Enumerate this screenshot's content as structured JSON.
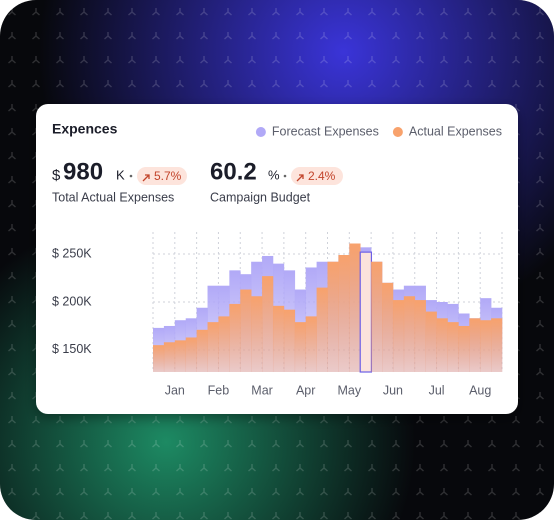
{
  "card": {
    "title": "Expences",
    "stats": [
      {
        "prefix": "$",
        "value": "980",
        "unit": "K",
        "change": "5.7%",
        "label": "Total Actual Expenses"
      },
      {
        "value": "60.2",
        "unit": "%",
        "change": "2.4%",
        "label": "Campaign Budget"
      }
    ]
  },
  "chart_data": {
    "type": "bar",
    "categories": [
      "Jan",
      null,
      null,
      null,
      "Feb",
      null,
      null,
      null,
      "Mar",
      null,
      null,
      null,
      "Apr",
      null,
      null,
      null,
      "May",
      null,
      null,
      null,
      "Jun",
      null,
      null,
      null,
      "Jul",
      null,
      null,
      null,
      "Aug",
      null,
      null,
      null
    ],
    "series": [
      {
        "name": "Forecast Expenses",
        "color": "#b1a9f7",
        "values": [
          173000,
          175000,
          181000,
          183000,
          194000,
          217000,
          217000,
          233000,
          229000,
          242000,
          248000,
          240000,
          233000,
          213000,
          236000,
          242000,
          242000,
          249000,
          261000,
          257000,
          242000,
          220000,
          213000,
          217000,
          217000,
          202000,
          200000,
          198000,
          188000,
          183000,
          204000,
          194000
        ]
      },
      {
        "name": "Actual Expenses",
        "color": "#f8a26c",
        "values": [
          155000,
          158000,
          160000,
          163000,
          171000,
          179000,
          185000,
          198000,
          213000,
          206000,
          227000,
          196000,
          192000,
          179000,
          185000,
          215000,
          242000,
          249000,
          261000,
          252000,
          242000,
          220000,
          202000,
          206000,
          202000,
          190000,
          183000,
          179000,
          175000,
          183000,
          181000,
          183000
        ]
      }
    ],
    "highlight": 19,
    "ylim": [
      127000,
      273000
    ],
    "yticks": [
      {
        "value": 150000,
        "label": "$ 150K"
      },
      {
        "value": 200000,
        "label": "$ 200K"
      },
      {
        "value": 250000,
        "label": "$ 250K"
      }
    ],
    "grid": true,
    "legend": "top-right"
  }
}
